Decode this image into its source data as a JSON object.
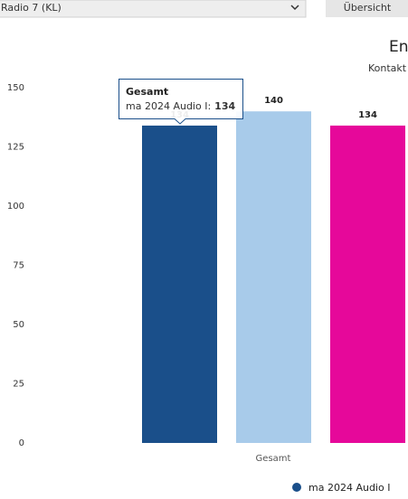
{
  "toolbar": {
    "dropdown": "Radio 7 (KL)",
    "button": "Übersicht"
  },
  "chart_data": {
    "type": "bar",
    "title": "En",
    "subtitle": "Kontakt",
    "categories": [
      "Gesamt"
    ],
    "series": [
      {
        "name": "ma 2024 Audio I",
        "color": "#1a4f8a",
        "values": [
          134
        ]
      },
      {
        "color": "#a8cbea",
        "values": [
          140
        ]
      },
      {
        "color": "#e6089a",
        "values": [
          134
        ]
      }
    ],
    "ylim": [
      0,
      150
    ],
    "yticks": [
      0,
      25,
      50,
      75,
      100,
      125,
      150
    ],
    "tooltip": {
      "separator": ":"
    }
  }
}
